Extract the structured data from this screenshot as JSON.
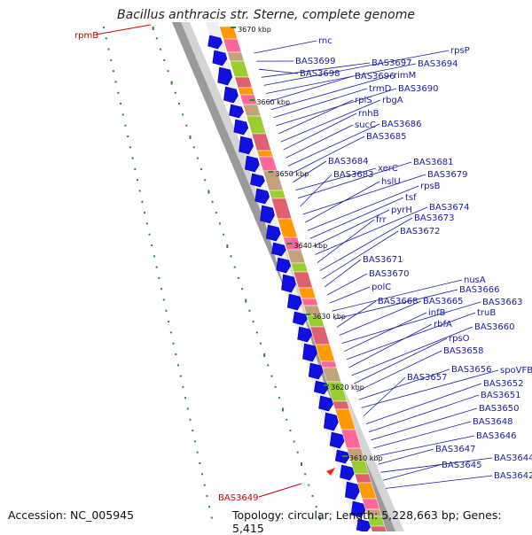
{
  "title": "Bacillus anthracis str. Sterne, complete genome",
  "footer": {
    "accession": "Accession: NC_005945",
    "summary": "Topology: circular; Length: 5,228,663 bp; Genes: 5,415"
  },
  "colors": {
    "label": "#1a1aa8",
    "highlight": "#cc0000",
    "arrow": "#1010e0",
    "tick": "#2a8a2a"
  },
  "kbp_markers": [
    "3670 kbp",
    "3660 kbp",
    "3650 kbp",
    "3640 kbp",
    "3630 kbp",
    "3620 kbp",
    "3610 kbp"
  ],
  "highlight_genes": [
    "rpmB",
    "BAS3649"
  ],
  "gene_labels": [
    "rnc",
    "BAS3699",
    "BAS3698",
    "BAS3697",
    "rpsP",
    "BAS3694",
    "BAS3696",
    "rimM",
    "trmD",
    "BAS3690",
    "rplS",
    "rbgA",
    "rnhB",
    "sucC",
    "BAS3686",
    "BAS3685",
    "BAS3684",
    "xerC",
    "BAS3681",
    "BAS3683",
    "BAS3679",
    "hslU",
    "rpsB",
    "tsf",
    "pyrH",
    "BAS3674",
    "frr",
    "BAS3673",
    "BAS3672",
    "BAS3671",
    "BAS3670",
    "polC",
    "nusA",
    "BAS3666",
    "BAS3668",
    "BAS3665",
    "BAS3663",
    "infB",
    "truB",
    "rbfA",
    "BAS3660",
    "rpsO",
    "BAS3658",
    "BAS3656",
    "spoVFB",
    "BAS3657",
    "BAS3652",
    "BAS3651",
    "BAS3650",
    "BAS3648",
    "BAS3646",
    "BAS3647",
    "BAS3644",
    "BAS3645",
    "BAS3642"
  ]
}
